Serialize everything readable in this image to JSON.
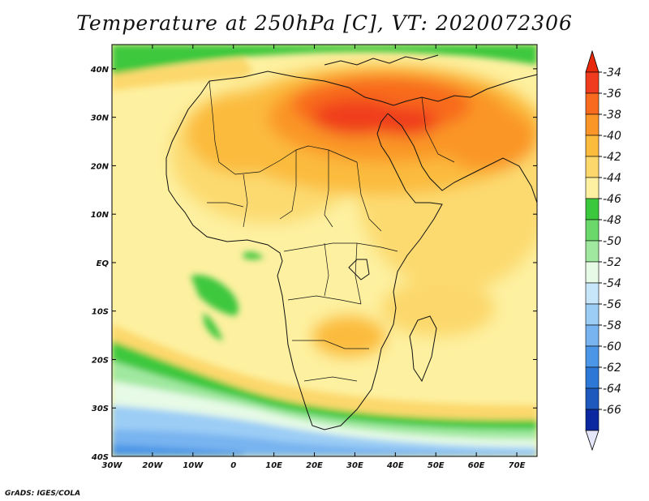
{
  "title": "Temperature at 250hPa [C], VT: 2020072306",
  "credit": "GrADS: IGES/COLA",
  "map": {
    "projection": "latlon",
    "lon_range": [
      -30,
      75
    ],
    "lat_range": [
      -40,
      45
    ],
    "lon_ticks": [
      "30W",
      "20W",
      "10W",
      "0",
      "10E",
      "20E",
      "30E",
      "40E",
      "50E",
      "60E",
      "70E"
    ],
    "lat_ticks": [
      "40S",
      "30S",
      "20S",
      "10S",
      "EQ",
      "10N",
      "20N",
      "30N",
      "40N"
    ]
  },
  "colorbar": {
    "labels": [
      "-34",
      "-36",
      "-38",
      "-40",
      "-42",
      "-44",
      "-46",
      "-48",
      "-50",
      "-52",
      "-54",
      "-56",
      "-58",
      "-60",
      "-62",
      "-64",
      "-66"
    ],
    "colors": [
      "#f03c1e",
      "#f86a1e",
      "#fa9628",
      "#fbbb3c",
      "#fcd86c",
      "#fdf0a0",
      "#3cc83c",
      "#6ad86a",
      "#a0e8a0",
      "#e6fae6",
      "#c8e6fa",
      "#9ccdf5",
      "#78b4f0",
      "#4b96e6",
      "#2d78d7",
      "#1e5abe",
      "#0c28a0"
    ],
    "over_color": "#e8280a",
    "under_color": "#e6e6fa"
  }
}
